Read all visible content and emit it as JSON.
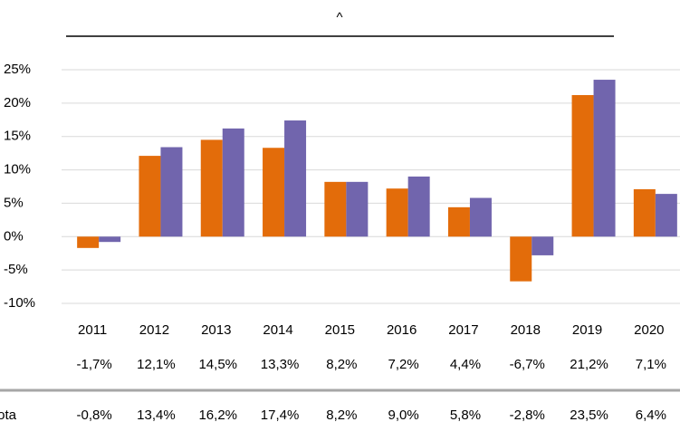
{
  "chart_data": {
    "type": "bar",
    "title": "^",
    "categories": [
      "2011",
      "2012",
      "2013",
      "2014",
      "2015",
      "2016",
      "2017",
      "2018",
      "2019",
      "2020"
    ],
    "series": [
      {
        "name": null,
        "color": "#e36c0a",
        "values": [
          -1.7,
          12.1,
          14.5,
          13.3,
          8.2,
          7.2,
          4.4,
          -6.7,
          21.2,
          7.1
        ],
        "value_labels": [
          "-1,7%",
          "12,1%",
          "14,5%",
          "13,3%",
          "8,2%",
          "7,2%",
          "4,4%",
          "-6,7%",
          "21,2%",
          "7,1%"
        ]
      },
      {
        "name": "ota",
        "color": "#7165ad",
        "values": [
          -0.8,
          13.4,
          16.2,
          17.4,
          8.2,
          9.0,
          5.8,
          -2.8,
          23.5,
          6.4
        ],
        "value_labels": [
          "-0,8%",
          "13,4%",
          "16,2%",
          "17,4%",
          "8,2%",
          "9,0%",
          "5,8%",
          "-2,8%",
          "23,5%",
          "6,4%"
        ]
      }
    ],
    "ylim": [
      -10,
      25
    ],
    "yticks": [
      {
        "value": -10,
        "label": "-10%"
      },
      {
        "value": -5,
        "label": "-5%"
      },
      {
        "value": 0,
        "label": "0%"
      },
      {
        "value": 5,
        "label": "5%"
      },
      {
        "value": 10,
        "label": "10%"
      },
      {
        "value": 15,
        "label": "15%"
      },
      {
        "value": 20,
        "label": "20%"
      },
      {
        "value": 25,
        "label": "25%"
      }
    ],
    "grid": true
  }
}
